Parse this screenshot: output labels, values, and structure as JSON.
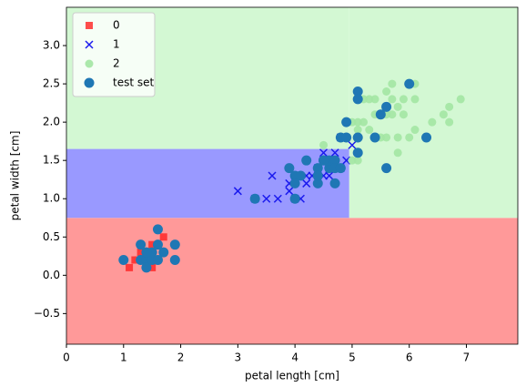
{
  "chart_data": {
    "type": "scatter",
    "xlabel": "petal length [cm]",
    "ylabel": "petal width [cm]",
    "xlim": [
      0,
      7.9
    ],
    "ylim": [
      -0.9,
      3.5
    ],
    "xticks": [
      0,
      1,
      2,
      3,
      4,
      5,
      6,
      7
    ],
    "yticks": [
      {
        "value": -0.5,
        "label": "−0.5"
      },
      {
        "value": 0,
        "label": "0.0"
      },
      0.5,
      {
        "value": 1,
        "label": "1.0"
      },
      1.5,
      {
        "value": 2,
        "label": "2.0"
      },
      2.5,
      {
        "value": 3,
        "label": "3.0"
      }
    ],
    "legend": "upper left",
    "regions": [
      {
        "color": "#ff9999",
        "x": [
          0,
          7.9
        ],
        "y": [
          -0.9,
          0.75
        ]
      },
      {
        "color": "#9999ff",
        "x": [
          0,
          4.95
        ],
        "y": [
          0.75,
          1.65
        ]
      },
      {
        "color": "#d3f8d3",
        "x": [
          0,
          4.95
        ],
        "y": [
          1.65,
          3.5
        ]
      },
      {
        "color": "#d3f8d3",
        "x": [
          4.95,
          7.9
        ],
        "y": [
          0.75,
          3.5
        ]
      }
    ],
    "series": [
      {
        "name": "0",
        "color": "#ff2020",
        "marker": "square",
        "x": [
          1.1,
          1.2,
          1.3,
          1.4,
          1.5,
          1.5,
          1.5,
          1.6,
          1.7,
          1.7,
          1.4,
          1.6,
          1.3,
          1.9,
          1.5,
          1.4
        ],
        "values": [
          0.1,
          0.2,
          0.2,
          0.2,
          0.1,
          0.2,
          0.4,
          0.2,
          0.5,
          0.3,
          0.3,
          0.4,
          0.3,
          0.4,
          0.3,
          0.1
        ]
      },
      {
        "name": "1",
        "color": "#1a1aee",
        "marker": "x",
        "x": [
          3.0,
          3.5,
          3.3,
          3.6,
          3.7,
          3.9,
          3.9,
          4.0,
          4.0,
          4.1,
          4.2,
          4.2,
          4.4,
          4.4,
          4.5,
          4.5,
          4.6,
          4.6,
          4.7,
          4.7,
          4.8,
          4.8,
          4.9,
          5.0,
          4.5,
          4.3
        ],
        "values": [
          1.1,
          1.0,
          1.0,
          1.3,
          1.0,
          1.1,
          1.2,
          1.0,
          1.3,
          1.0,
          1.3,
          1.2,
          1.3,
          1.4,
          1.5,
          1.3,
          1.3,
          1.4,
          1.4,
          1.6,
          1.4,
          1.8,
          1.5,
          1.7,
          1.6,
          1.3
        ]
      },
      {
        "name": "2",
        "color": "#a3e6a3",
        "marker": "circle",
        "x": [
          4.5,
          4.9,
          5.0,
          5.0,
          5.1,
          5.1,
          5.1,
          5.2,
          5.3,
          5.4,
          5.5,
          5.5,
          5.6,
          5.6,
          5.7,
          5.7,
          5.8,
          5.8,
          5.9,
          6.0,
          6.1,
          6.1,
          6.1,
          6.4,
          6.6,
          6.7,
          6.7,
          6.9,
          5.6,
          5.8,
          5.9,
          5.7,
          5.2,
          5.3,
          4.8,
          5.1,
          5.4
        ],
        "values": [
          1.7,
          1.8,
          1.5,
          2.0,
          1.9,
          1.5,
          2.0,
          2.3,
          2.3,
          2.3,
          2.1,
          1.8,
          2.4,
          1.8,
          2.1,
          2.3,
          2.2,
          1.8,
          2.1,
          1.8,
          1.9,
          2.3,
          2.5,
          2.0,
          2.1,
          2.2,
          2.0,
          2.3,
          2.1,
          1.6,
          2.3,
          2.5,
          2.0,
          1.9,
          1.8,
          1.8,
          2.1
        ]
      },
      {
        "name": "test set",
        "color": "#1f77b4",
        "marker": "big-circle",
        "x": [
          1.0,
          1.3,
          1.3,
          1.4,
          1.4,
          1.5,
          1.5,
          1.6,
          1.6,
          1.7,
          1.9,
          1.9,
          1.4,
          1.6,
          3.3,
          3.9,
          4.0,
          4.0,
          4.0,
          4.2,
          4.4,
          4.5,
          4.6,
          4.6,
          4.7,
          4.7,
          4.8,
          4.4,
          4.7,
          4.1,
          4.4,
          4.9,
          4.8,
          4.9,
          5.1,
          5.1,
          5.1,
          5.4,
          5.5,
          5.6,
          5.6,
          6.0,
          6.3,
          5.1,
          4.5
        ],
        "values": [
          0.2,
          0.2,
          0.4,
          0.2,
          0.1,
          0.2,
          0.3,
          0.6,
          0.4,
          0.3,
          0.4,
          0.2,
          0.3,
          0.2,
          1.0,
          1.4,
          1.3,
          1.2,
          1.0,
          1.5,
          1.4,
          1.5,
          1.4,
          1.5,
          1.5,
          1.4,
          1.4,
          1.2,
          1.2,
          1.3,
          1.3,
          2.0,
          1.8,
          1.8,
          2.4,
          2.3,
          1.6,
          1.8,
          2.1,
          2.2,
          1.4,
          2.5,
          1.8,
          1.8,
          1.5
        ]
      }
    ]
  }
}
